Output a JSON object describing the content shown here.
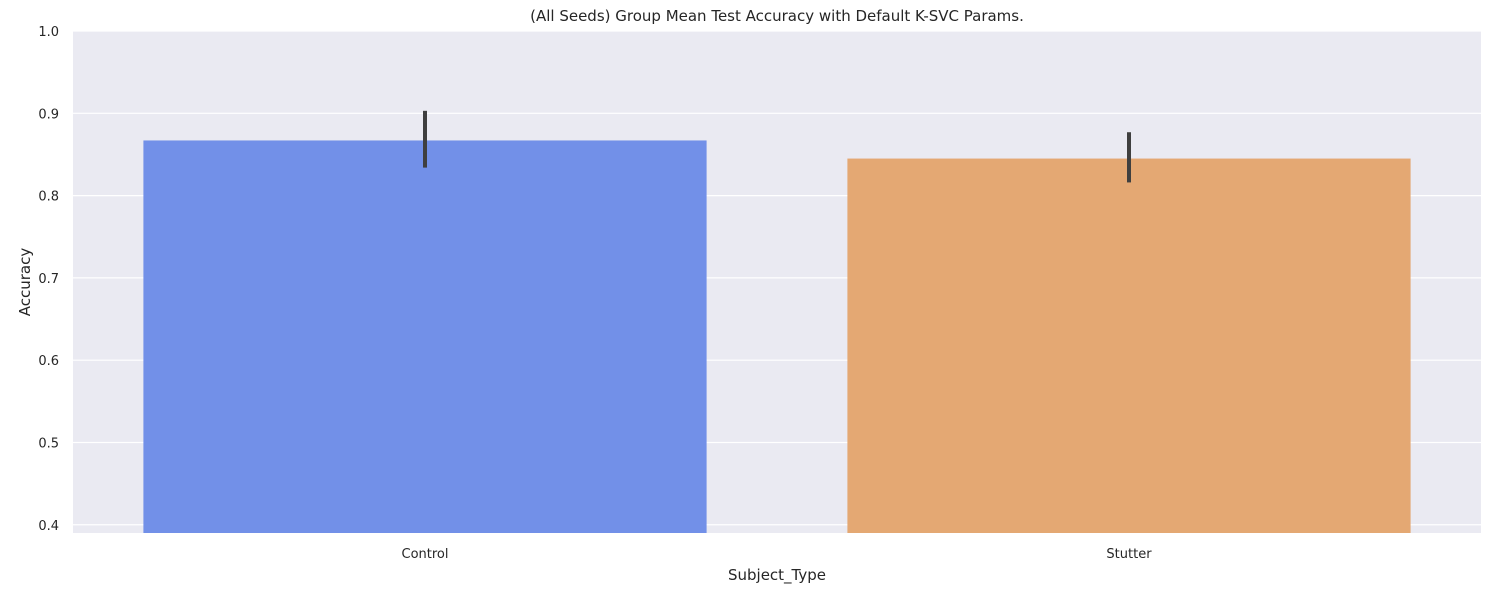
{
  "chart_data": {
    "type": "bar",
    "title": "(All Seeds) Group Mean Test Accuracy with Default K-SVC Params.",
    "xlabel": "Subject_Type",
    "ylabel": "Accuracy",
    "ylim": [
      0.39,
      1.0
    ],
    "yticks": [
      "0.4",
      "0.5",
      "0.6",
      "0.7",
      "0.8",
      "0.9",
      "1.0"
    ],
    "categories": [
      "Control",
      "Stutter"
    ],
    "values": [
      0.867,
      0.845
    ],
    "error_low": [
      0.834,
      0.816
    ],
    "error_high": [
      0.903,
      0.877
    ],
    "grid": true,
    "colors": {
      "background": "#eaeaf2",
      "grid": "#ffffff",
      "bars": [
        "#7290e8",
        "#e4a873"
      ],
      "errorbar": "#3f3f3f"
    }
  }
}
